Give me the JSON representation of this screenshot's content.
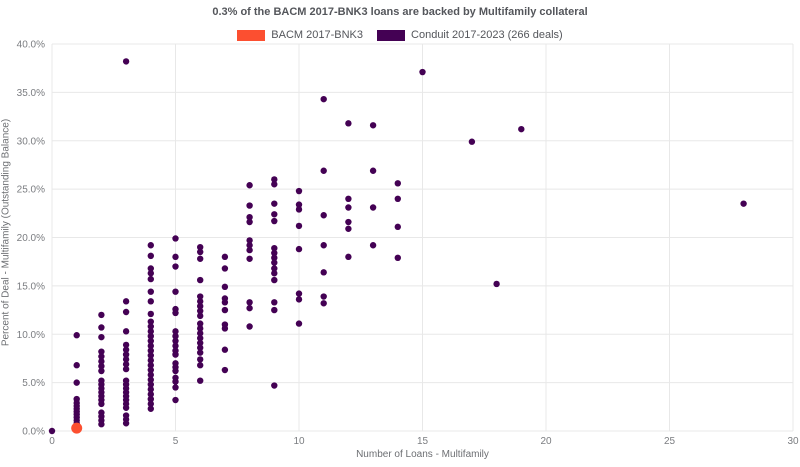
{
  "title": "0.3% of the BACM 2017-BNK3 loans are backed by Multifamily collateral",
  "legend": {
    "items": [
      {
        "label": "BACM 2017-BNK3",
        "color": "#fc4f30"
      },
      {
        "label": "Conduit 2017-2023 (266 deals)",
        "color": "#440154"
      }
    ]
  },
  "chart_data": {
    "type": "scatter",
    "title": "0.3% of the BACM 2017-BNK3 loans are backed by Multifamily collateral",
    "xlabel": "Number of Loans - Multifamily",
    "ylabel": "Percent of Deal - Multifamily (Outstanding Balance)",
    "xlim": [
      0,
      30
    ],
    "ylim": [
      0,
      40
    ],
    "x_ticks": [
      0,
      5,
      10,
      15,
      20,
      25,
      30
    ],
    "y_ticks": [
      0,
      5,
      10,
      15,
      20,
      25,
      30,
      35,
      40
    ],
    "y_tick_labels": [
      "0.0%",
      "5.0%",
      "10.0%",
      "15.0%",
      "20.0%",
      "25.0%",
      "30.0%",
      "35.0%",
      "40.0%"
    ],
    "grid": true,
    "legend_position": "top-center",
    "colors": {
      "grid": "#e8e8e8",
      "tick_text": "#7b7d81"
    },
    "series": [
      {
        "name": "Conduit 2017-2023 (266 deals)",
        "color": "#440154",
        "marker_radius": 3.2,
        "points": [
          [
            0,
            0.0
          ],
          [
            1,
            9.9
          ],
          [
            1,
            6.8
          ],
          [
            1,
            5.0
          ],
          [
            1,
            3.3
          ],
          [
            1,
            2.9
          ],
          [
            1,
            2.6
          ],
          [
            1,
            2.3
          ],
          [
            1,
            2.0
          ],
          [
            1,
            1.7
          ],
          [
            1,
            1.4
          ],
          [
            1,
            1.1
          ],
          [
            1,
            0.8
          ],
          [
            1,
            0.5
          ],
          [
            2,
            12.0
          ],
          [
            2,
            10.7
          ],
          [
            2,
            9.7
          ],
          [
            2,
            8.2
          ],
          [
            2,
            7.7
          ],
          [
            2,
            7.2
          ],
          [
            2,
            6.7
          ],
          [
            2,
            6.2
          ],
          [
            2,
            5.2
          ],
          [
            2,
            4.8
          ],
          [
            2,
            4.4
          ],
          [
            2,
            4.0
          ],
          [
            2,
            3.6
          ],
          [
            2,
            3.2
          ],
          [
            2,
            2.8
          ],
          [
            2,
            1.9
          ],
          [
            2,
            1.5
          ],
          [
            2,
            1.1
          ],
          [
            2,
            0.7
          ],
          [
            3,
            38.2
          ],
          [
            3,
            13.4
          ],
          [
            3,
            12.3
          ],
          [
            3,
            10.3
          ],
          [
            3,
            8.9
          ],
          [
            3,
            8.4
          ],
          [
            3,
            7.9
          ],
          [
            3,
            7.4
          ],
          [
            3,
            6.9
          ],
          [
            3,
            6.4
          ],
          [
            3,
            5.2
          ],
          [
            3,
            4.8
          ],
          [
            3,
            4.4
          ],
          [
            3,
            4.0
          ],
          [
            3,
            3.6
          ],
          [
            3,
            3.2
          ],
          [
            3,
            2.8
          ],
          [
            3,
            2.4
          ],
          [
            3,
            1.6
          ],
          [
            3,
            1.2
          ],
          [
            3,
            0.8
          ],
          [
            4,
            19.2
          ],
          [
            4,
            18.1
          ],
          [
            4,
            16.8
          ],
          [
            4,
            16.3
          ],
          [
            4,
            15.7
          ],
          [
            4,
            14.4
          ],
          [
            4,
            13.4
          ],
          [
            4,
            12.1
          ],
          [
            4,
            11.3
          ],
          [
            4,
            10.8
          ],
          [
            4,
            10.3
          ],
          [
            4,
            9.8
          ],
          [
            4,
            9.3
          ],
          [
            4,
            8.8
          ],
          [
            4,
            8.3
          ],
          [
            4,
            7.8
          ],
          [
            4,
            7.3
          ],
          [
            4,
            6.8
          ],
          [
            4,
            6.3
          ],
          [
            4,
            5.8
          ],
          [
            4,
            5.3
          ],
          [
            4,
            4.8
          ],
          [
            4,
            4.3
          ],
          [
            4,
            3.8
          ],
          [
            4,
            3.3
          ],
          [
            4,
            2.8
          ],
          [
            4,
            2.3
          ],
          [
            5,
            19.9
          ],
          [
            5,
            18.0
          ],
          [
            5,
            17.0
          ],
          [
            5,
            14.4
          ],
          [
            5,
            12.6
          ],
          [
            5,
            12.2
          ],
          [
            5,
            10.3
          ],
          [
            5,
            9.8
          ],
          [
            5,
            9.3
          ],
          [
            5,
            8.8
          ],
          [
            5,
            8.3
          ],
          [
            5,
            7.9
          ],
          [
            5,
            7.0
          ],
          [
            5,
            6.6
          ],
          [
            5,
            6.2
          ],
          [
            5,
            5.5
          ],
          [
            5,
            5.1
          ],
          [
            5,
            4.5
          ],
          [
            5,
            3.2
          ],
          [
            6,
            19.0
          ],
          [
            6,
            18.5
          ],
          [
            6,
            17.8
          ],
          [
            6,
            15.6
          ],
          [
            6,
            13.9
          ],
          [
            6,
            13.4
          ],
          [
            6,
            12.9
          ],
          [
            6,
            12.4
          ],
          [
            6,
            11.9
          ],
          [
            6,
            11.1
          ],
          [
            6,
            10.6
          ],
          [
            6,
            10.1
          ],
          [
            6,
            9.6
          ],
          [
            6,
            9.1
          ],
          [
            6,
            8.6
          ],
          [
            6,
            8.1
          ],
          [
            6,
            7.4
          ],
          [
            6,
            6.8
          ],
          [
            6,
            5.2
          ],
          [
            7,
            18.0
          ],
          [
            7,
            16.8
          ],
          [
            7,
            14.9
          ],
          [
            7,
            13.7
          ],
          [
            7,
            13.3
          ],
          [
            7,
            12.5
          ],
          [
            7,
            11.0
          ],
          [
            7,
            10.6
          ],
          [
            7,
            8.4
          ],
          [
            7,
            6.3
          ],
          [
            8,
            25.4
          ],
          [
            8,
            23.3
          ],
          [
            8,
            22.1
          ],
          [
            8,
            21.6
          ],
          [
            8,
            19.7
          ],
          [
            8,
            19.2
          ],
          [
            8,
            18.7
          ],
          [
            8,
            17.8
          ],
          [
            8,
            13.3
          ],
          [
            8,
            12.7
          ],
          [
            8,
            10.8
          ],
          [
            9,
            26.0
          ],
          [
            9,
            25.5
          ],
          [
            9,
            23.5
          ],
          [
            9,
            22.4
          ],
          [
            9,
            21.7
          ],
          [
            9,
            18.9
          ],
          [
            9,
            18.4
          ],
          [
            9,
            17.9
          ],
          [
            9,
            17.4
          ],
          [
            9,
            16.8
          ],
          [
            9,
            16.3
          ],
          [
            9,
            15.6
          ],
          [
            9,
            13.3
          ],
          [
            9,
            12.5
          ],
          [
            9,
            4.7
          ],
          [
            10,
            24.8
          ],
          [
            10,
            23.4
          ],
          [
            10,
            22.9
          ],
          [
            10,
            21.2
          ],
          [
            10,
            18.8
          ],
          [
            10,
            14.2
          ],
          [
            10,
            13.6
          ],
          [
            10,
            11.1
          ],
          [
            11,
            34.3
          ],
          [
            11,
            26.9
          ],
          [
            11,
            22.3
          ],
          [
            11,
            19.2
          ],
          [
            11,
            16.4
          ],
          [
            11,
            13.9
          ],
          [
            11,
            13.2
          ],
          [
            12,
            31.8
          ],
          [
            12,
            24.0
          ],
          [
            12,
            23.1
          ],
          [
            12,
            21.6
          ],
          [
            12,
            20.9
          ],
          [
            12,
            18.0
          ],
          [
            13,
            31.6
          ],
          [
            13,
            26.9
          ],
          [
            13,
            23.1
          ],
          [
            13,
            19.2
          ],
          [
            14,
            25.6
          ],
          [
            14,
            24.0
          ],
          [
            14,
            21.1
          ],
          [
            14,
            17.9
          ],
          [
            15,
            37.1
          ],
          [
            17,
            29.9
          ],
          [
            18,
            15.2
          ],
          [
            19,
            31.2
          ],
          [
            28,
            23.5
          ]
        ]
      },
      {
        "name": "BACM 2017-BNK3",
        "color": "#fc4f30",
        "marker_radius": 5.5,
        "points": [
          [
            1,
            0.3
          ]
        ]
      }
    ]
  }
}
